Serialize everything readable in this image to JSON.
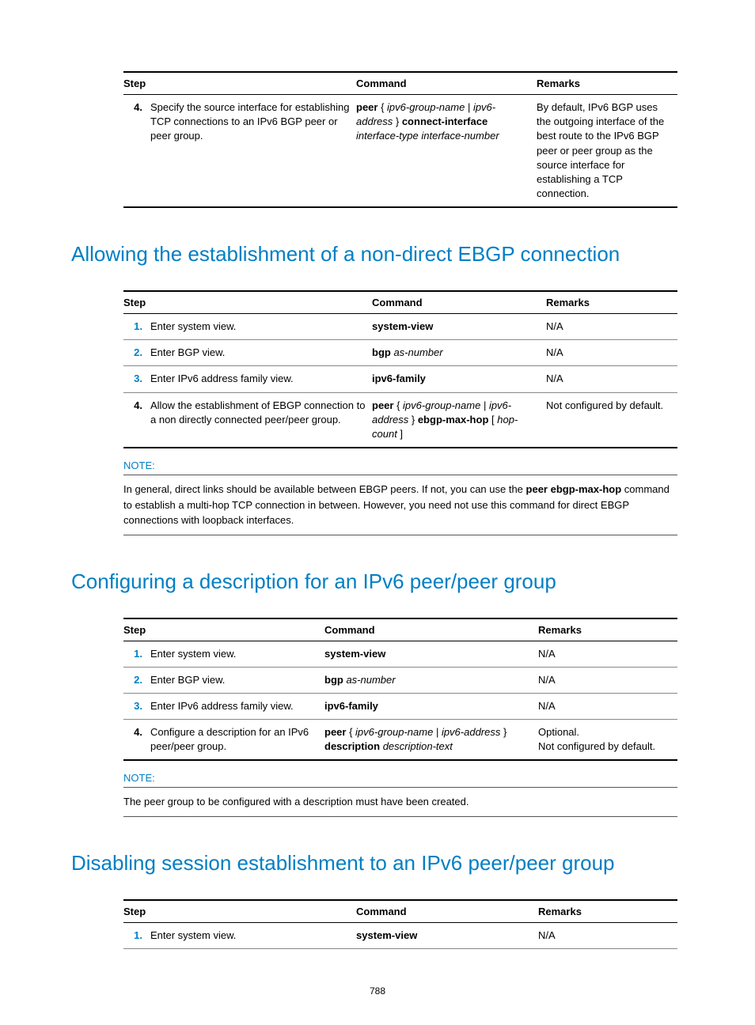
{
  "colors": {
    "accent": "#007fc4",
    "text": "#000000",
    "rule_dark": "#000000",
    "rule_light": "#888888"
  },
  "table1": {
    "headers": [
      "Step",
      "Command",
      "Remarks"
    ],
    "col_widths": [
      "260px",
      "228px",
      ""
    ],
    "rows": [
      {
        "num": "4.",
        "num_color": "black",
        "desc": "Specify the source interface for establishing TCP connections to an IPv6 BGP peer or peer group.",
        "cmd_html": "<span class='b'>peer</span> { <span class='i'>ipv6-group-name</span> | <span class='i'>ipv6-address</span> } <span class='b'>connect-interface</span> <span class='i'>interface-type interface-number</span>",
        "remarks": "By default, IPv6 BGP uses the outgoing interface of the best route to the IPv6 BGP peer or peer group as the source interface for establishing a TCP connection."
      }
    ]
  },
  "heading2": "Allowing the establishment of a non-direct EBGP connection",
  "table2": {
    "headers": [
      "Step",
      "Command",
      "Remarks"
    ],
    "col_widths": [
      "280px",
      "220px",
      ""
    ],
    "rows": [
      {
        "num": "1.",
        "num_color": "blue",
        "desc": "Enter system view.",
        "cmd_html": "<span class='b'>system-view</span>",
        "remarks": "N/A"
      },
      {
        "num": "2.",
        "num_color": "blue",
        "desc": "Enter BGP view.",
        "cmd_html": "<span class='b'>bgp</span> <span class='i'>as-number</span>",
        "remarks": "N/A"
      },
      {
        "num": "3.",
        "num_color": "blue",
        "desc": "Enter IPv6 address family view.",
        "cmd_html": "<span class='b'>ipv6-family</span>",
        "remarks": "N/A"
      },
      {
        "num": "4.",
        "num_color": "black",
        "desc": "Allow the establishment of EBGP connection to a non directly connected peer/peer group.",
        "cmd_html": "<span class='b'>peer</span> { <span class='i'>ipv6-group-name</span> | <span class='i'>ipv6-address</span> } <span class='b'>ebgp-max-hop</span> [ <span class='i'>hop-count</span> ]",
        "remarks": "Not configured by default."
      }
    ]
  },
  "note2": {
    "label": "NOTE:",
    "text_html": "In general, direct links should be available between EBGP peers. If not, you can use the <span class='b'>peer ebgp-max-hop</span> command to establish a multi-hop TCP connection in between. However, you need not use this command for direct EBGP connections with loopback interfaces."
  },
  "heading3": "Configuring a description for an IPv6 peer/peer group",
  "table3": {
    "headers": [
      "Step",
      "Command",
      "Remarks"
    ],
    "col_widths": [
      "220px",
      "270px",
      ""
    ],
    "rows": [
      {
        "num": "1.",
        "num_color": "blue",
        "desc": "Enter system view.",
        "cmd_html": "<span class='b'>system-view</span>",
        "remarks": "N/A"
      },
      {
        "num": "2.",
        "num_color": "blue",
        "desc": "Enter BGP view.",
        "cmd_html": "<span class='b'>bgp</span> <span class='i'>as-number</span>",
        "remarks": "N/A"
      },
      {
        "num": "3.",
        "num_color": "blue",
        "desc": "Enter IPv6 address family view.",
        "cmd_html": "<span class='b'>ipv6-family</span>",
        "remarks": "N/A"
      },
      {
        "num": "4.",
        "num_color": "black",
        "desc": "Configure a description for an IPv6 peer/peer group.",
        "cmd_html": "<span class='b'>peer</span> { <span class='i'>ipv6-group-name</span> | <span class='i'>ipv6-address</span> } <span class='b'>description</span> <span class='i'>description-text</span>",
        "remarks_html": "Optional.<br>Not configured by default."
      }
    ]
  },
  "note3": {
    "label": "NOTE:",
    "text_html": "The peer group to be configured with a description must have been created."
  },
  "heading4": "Disabling session establishment to an IPv6 peer/peer group",
  "table4": {
    "headers": [
      "Step",
      "Command",
      "Remarks"
    ],
    "col_widths": [
      "260px",
      "230px",
      ""
    ],
    "rows": [
      {
        "num": "1.",
        "num_color": "blue",
        "desc": "Enter system view.",
        "cmd_html": "<span class='b'>system-view</span>",
        "remarks": "N/A"
      }
    ],
    "no_bottom_rule": true
  },
  "page_number": "788"
}
